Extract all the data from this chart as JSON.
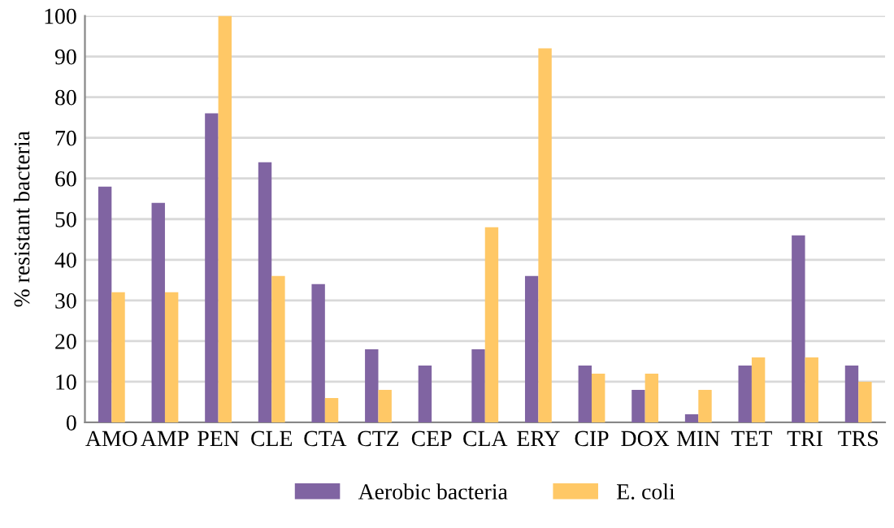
{
  "chart_data": {
    "type": "bar",
    "ylabel": "% resistant bacteria",
    "categories": [
      "AMO",
      "AMP",
      "PEN",
      "CLE",
      "CTA",
      "CTZ",
      "CEP",
      "CLA",
      "ERY",
      "CIP",
      "DOX",
      "MIN",
      "TET",
      "TRI",
      "TRS"
    ],
    "series": [
      {
        "name": "Aerobic bacteria",
        "color": "#8064a2",
        "values": [
          58,
          54,
          76,
          64,
          34,
          18,
          14,
          18,
          36,
          14,
          8,
          2,
          14,
          46,
          14
        ]
      },
      {
        "name": "E. coli",
        "color": "#ffc866",
        "values": [
          32,
          32,
          100,
          36,
          6,
          8,
          0,
          48,
          92,
          12,
          12,
          8,
          16,
          16,
          10
        ]
      }
    ],
    "ylim": [
      0,
      100
    ],
    "yticks": [
      0,
      10,
      20,
      30,
      40,
      50,
      60,
      70,
      80,
      90,
      100
    ],
    "grid": "y",
    "legend": "bottom"
  }
}
